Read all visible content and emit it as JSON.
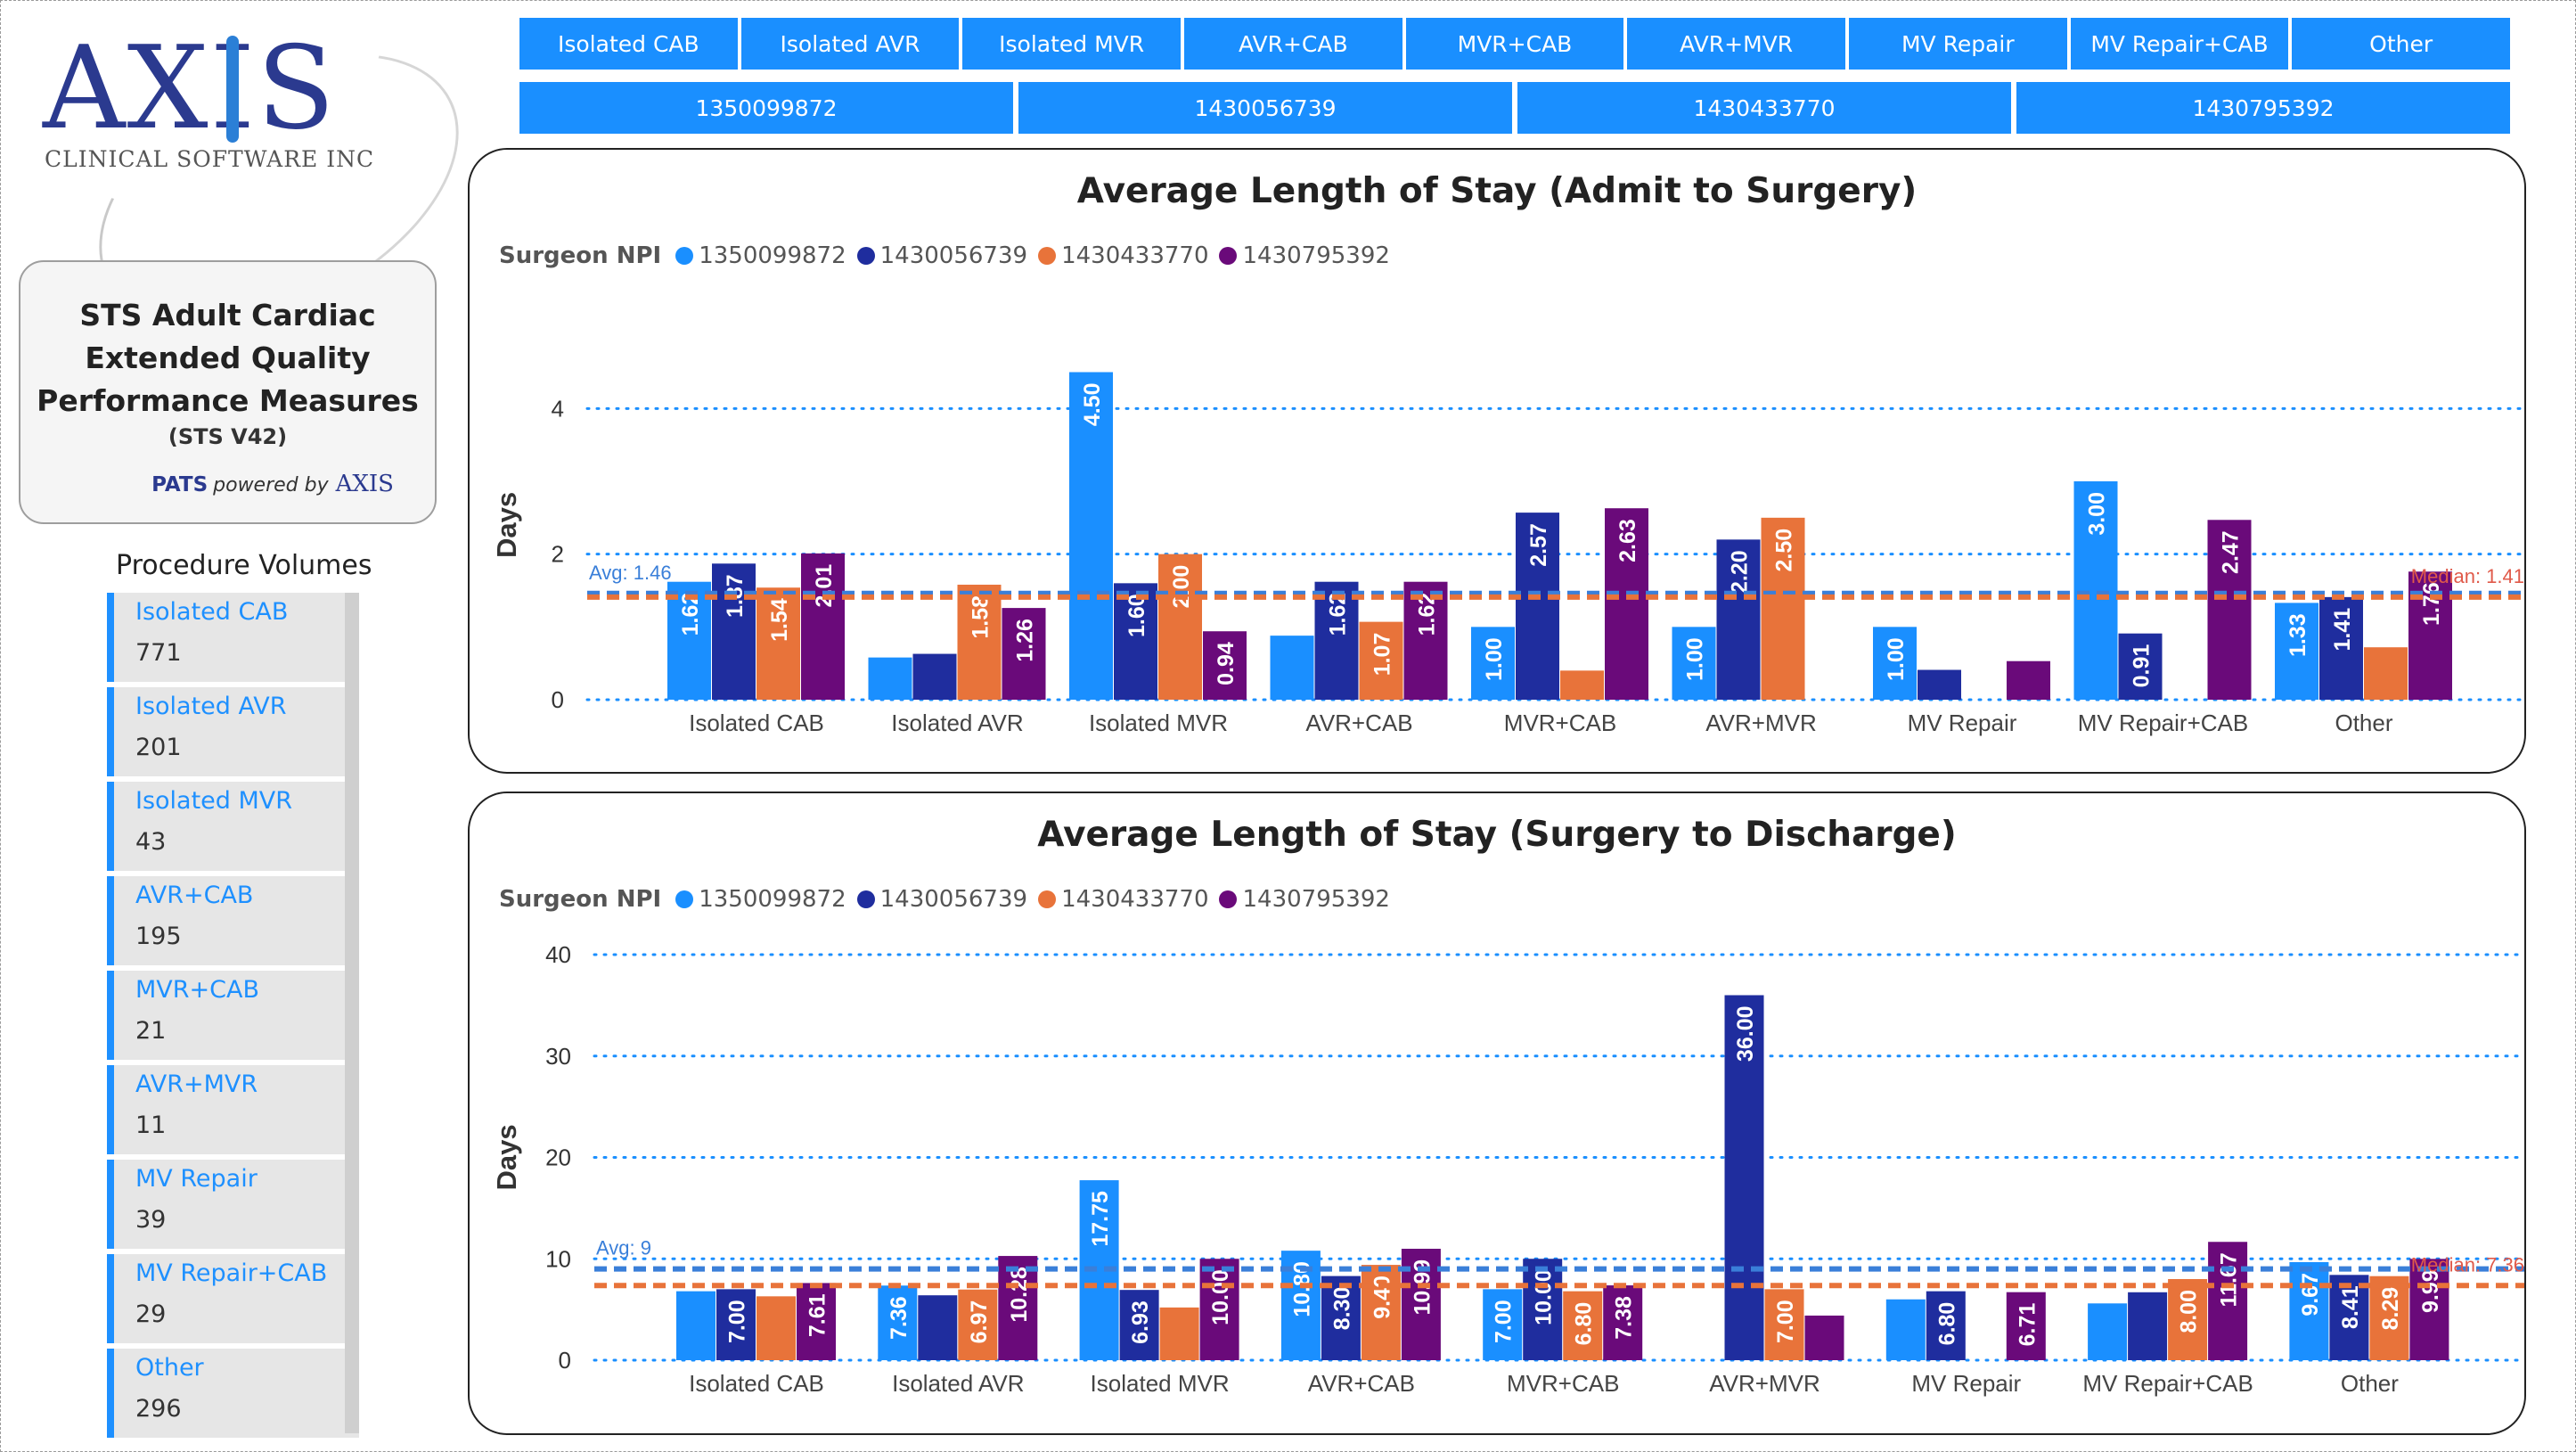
{
  "logo": {
    "letters": "AXIS",
    "subtitle": "CLINICAL SOFTWARE INC"
  },
  "title_card": {
    "line1": "STS Adult Cardiac",
    "line2": "Extended Quality",
    "line3": "Performance Measures",
    "version": "(STS V42)",
    "pats": "PATS",
    "powered_by": "powered by",
    "brand": "AXIS"
  },
  "procedure_volumes": {
    "title": "Procedure Volumes",
    "items": [
      {
        "label": "Isolated CAB",
        "value": "771"
      },
      {
        "label": "Isolated AVR",
        "value": "201"
      },
      {
        "label": "Isolated MVR",
        "value": "43"
      },
      {
        "label": "AVR+CAB",
        "value": "195"
      },
      {
        "label": "MVR+CAB",
        "value": "21"
      },
      {
        "label": "AVR+MVR",
        "value": "11"
      },
      {
        "label": "MV Repair",
        "value": "39"
      },
      {
        "label": "MV Repair+CAB",
        "value": "29"
      },
      {
        "label": "Other",
        "value": "296"
      }
    ]
  },
  "procedure_slicer": [
    "Isolated CAB",
    "Isolated AVR",
    "Isolated MVR",
    "AVR+CAB",
    "MVR+CAB",
    "AVR+MVR",
    "MV Repair",
    "MV Repair+CAB",
    "Other"
  ],
  "surgeon_slicer": [
    "1350099872",
    "1430056739",
    "1430433770",
    "1430795392"
  ],
  "colors": {
    "s1": "#1a8fff",
    "s2": "#1f2d9e",
    "s3": "#e8733a",
    "s4": "#6a0a7a",
    "avg_line": "#3a7fd9",
    "median_line": "#e8733a"
  },
  "chart_data": [
    {
      "type": "bar",
      "title": "Average Length of Stay (Admit to Surgery)",
      "legend_title": "Surgeon NPI",
      "ylabel": "Days",
      "xlabel": "",
      "ylim": [
        0,
        4.8
      ],
      "yticks": [
        "0",
        "2",
        "4"
      ],
      "categories": [
        "Isolated CAB",
        "Isolated AVR",
        "Isolated MVR",
        "AVR+CAB",
        "MVR+CAB",
        "AVR+MVR",
        "MV Repair",
        "MV Repair+CAB",
        "Other"
      ],
      "series": [
        {
          "name": "1350099872",
          "values": [
            1.62,
            0.58,
            4.5,
            0.88,
            1.0,
            1.0,
            1.0,
            3.0,
            1.33
          ],
          "labels": [
            "1.62",
            "",
            "4.50",
            "",
            "1.00",
            "1.00",
            "1.00",
            "3.00",
            "1.33"
          ]
        },
        {
          "name": "1430056739",
          "values": [
            1.87,
            0.63,
            1.6,
            1.62,
            2.57,
            2.2,
            0.41,
            0.91,
            1.41
          ],
          "labels": [
            "1.87",
            "",
            "1.60",
            "1.62",
            "2.57",
            "2.20",
            "",
            "0.91",
            "1.41"
          ]
        },
        {
          "name": "1430433770",
          "values": [
            1.54,
            1.58,
            2.0,
            1.07,
            0.4,
            2.5,
            null,
            null,
            0.72
          ],
          "labels": [
            "1.54",
            "1.58",
            "2.00",
            "1.07",
            "",
            "2.50",
            "",
            "",
            ""
          ]
        },
        {
          "name": "1430795392",
          "values": [
            2.01,
            1.26,
            0.94,
            1.62,
            2.63,
            null,
            0.53,
            2.47,
            1.76
          ],
          "labels": [
            "2.01",
            "1.26",
            "0.94",
            "1.62",
            "2.63",
            "",
            "",
            "2.47",
            "1.76"
          ]
        }
      ],
      "reference_lines": {
        "average": 1.46,
        "average_label": "Avg: 1.46",
        "median": 1.41,
        "median_label": "Median: 1.41"
      },
      "grid": true,
      "legend_position": "top-left"
    },
    {
      "type": "bar",
      "title": "Average Length of Stay (Surgery to Discharge)",
      "legend_title": "Surgeon NPI",
      "ylabel": "Days",
      "xlabel": "",
      "ylim": [
        0,
        40
      ],
      "yticks": [
        "0",
        "10",
        "20",
        "30",
        "40"
      ],
      "categories": [
        "Isolated CAB",
        "Isolated AVR",
        "Isolated MVR",
        "AVR+CAB",
        "MVR+CAB",
        "AVR+MVR",
        "MV Repair",
        "MV Repair+CAB",
        "Other"
      ],
      "series": [
        {
          "name": "1350099872",
          "values": [
            6.8,
            7.36,
            17.75,
            10.8,
            7.0,
            null,
            6.0,
            5.6,
            9.67
          ],
          "labels": [
            "",
            "7.36",
            "17.75",
            "10.80",
            "7.00",
            "",
            "",
            "",
            "9.67"
          ]
        },
        {
          "name": "1430056739",
          "values": [
            7.0,
            6.4,
            6.93,
            8.3,
            10.0,
            36.0,
            6.8,
            6.7,
            8.41
          ],
          "labels": [
            "7.00",
            "",
            "6.93",
            "8.30",
            "10.00",
            "36.00",
            "6.80",
            "",
            "8.41"
          ]
        },
        {
          "name": "1430433770",
          "values": [
            6.3,
            6.97,
            5.2,
            9.4,
            6.8,
            7.0,
            null,
            8.0,
            8.29
          ],
          "labels": [
            "",
            "6.97",
            "",
            "9.40",
            "6.80",
            "7.00",
            "",
            "8.00",
            "8.29"
          ]
        },
        {
          "name": "1430795392",
          "values": [
            7.61,
            10.28,
            10.0,
            10.99,
            7.38,
            4.4,
            6.71,
            11.67,
            9.99
          ],
          "labels": [
            "7.61",
            "10.28",
            "10.00",
            "10.99",
            "7.38",
            "",
            "6.71",
            "11.67",
            "9.99"
          ]
        }
      ],
      "reference_lines": {
        "average": 9,
        "average_label": "Avg: 9",
        "median": 7.36,
        "median_label": "Median: 7.36"
      },
      "grid": true,
      "legend_position": "top-left"
    }
  ]
}
